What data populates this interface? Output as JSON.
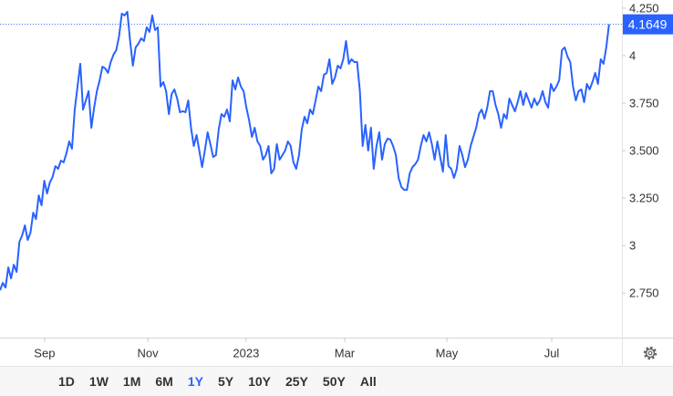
{
  "chart_data": {
    "type": "line",
    "values": [
      2.764,
      2.803,
      2.779,
      2.885,
      2.827,
      2.899,
      2.861,
      3.019,
      3.053,
      3.106,
      3.029,
      3.067,
      3.173,
      3.139,
      3.264,
      3.212,
      3.341,
      3.274,
      3.332,
      3.361,
      3.418,
      3.404,
      3.447,
      3.438,
      3.486,
      3.548,
      3.51,
      3.716,
      3.837,
      3.957,
      3.716,
      3.764,
      3.813,
      3.62,
      3.726,
      3.813,
      3.87,
      3.942,
      3.933,
      3.909,
      3.966,
      4.005,
      4.029,
      4.101,
      4.221,
      4.212,
      4.231,
      4.077,
      3.947,
      4.043,
      4.063,
      4.091,
      4.077,
      4.149,
      4.125,
      4.212,
      4.135,
      4.149,
      3.837,
      3.861,
      3.813,
      3.692,
      3.798,
      3.822,
      3.774,
      3.702,
      3.707,
      3.702,
      3.764,
      3.62,
      3.524,
      3.582,
      3.5,
      3.413,
      3.5,
      3.596,
      3.534,
      3.466,
      3.476,
      3.611,
      3.692,
      3.678,
      3.716,
      3.654,
      3.87,
      3.822,
      3.885,
      3.837,
      3.813,
      3.726,
      3.659,
      3.572,
      3.62,
      3.548,
      3.524,
      3.452,
      3.476,
      3.524,
      3.38,
      3.404,
      3.534,
      3.452,
      3.476,
      3.5,
      3.548,
      3.524,
      3.438,
      3.404,
      3.476,
      3.611,
      3.678,
      3.644,
      3.716,
      3.692,
      3.764,
      3.837,
      3.813,
      3.899,
      3.909,
      3.981,
      3.851,
      3.885,
      3.947,
      3.933,
      3.981,
      4.077,
      3.957,
      3.981,
      3.966,
      3.966,
      3.813,
      3.524,
      3.635,
      3.5,
      3.62,
      3.404,
      3.524,
      3.596,
      3.452,
      3.534,
      3.563,
      3.558,
      3.524,
      3.476,
      3.356,
      3.308,
      3.293,
      3.293,
      3.38,
      3.413,
      3.428,
      3.452,
      3.524,
      3.582,
      3.548,
      3.596,
      3.534,
      3.452,
      3.548,
      3.466,
      3.389,
      3.582,
      3.418,
      3.404,
      3.356,
      3.404,
      3.524,
      3.476,
      3.413,
      3.452,
      3.524,
      3.572,
      3.62,
      3.692,
      3.716,
      3.668,
      3.726,
      3.813,
      3.813,
      3.74,
      3.692,
      3.62,
      3.692,
      3.668,
      3.774,
      3.74,
      3.707,
      3.755,
      3.813,
      3.74,
      3.803,
      3.764,
      3.726,
      3.774,
      3.74,
      3.764,
      3.813,
      3.755,
      3.726,
      3.851,
      3.813,
      3.837,
      3.87,
      4.029,
      4.043,
      3.995,
      3.966,
      3.837,
      3.764,
      3.813,
      3.822,
      3.755,
      3.851,
      3.822,
      3.861,
      3.909,
      3.851,
      3.981,
      3.957,
      4.043,
      4.1649
    ],
    "color": "#2962ff",
    "xlim": [
      0,
      224
    ],
    "xticks": [
      {
        "value": 16.1,
        "label": "Sep"
      },
      {
        "value": 53.4,
        "label": "Nov"
      },
      {
        "value": 88.9,
        "label": "2023"
      },
      {
        "value": 124.5,
        "label": "Mar"
      },
      {
        "value": 161.4,
        "label": "May"
      },
      {
        "value": 199.3,
        "label": "Jul"
      }
    ],
    "ylim": [
      2.515,
      4.293
    ],
    "yticks": [
      {
        "value": 4.25,
        "label": "4.250"
      },
      4,
      {
        "value": 3.75,
        "label": "3.750"
      },
      {
        "value": 3.5,
        "label": "3.500"
      },
      {
        "value": 3.25,
        "label": "3.250"
      },
      3,
      {
        "value": 2.75,
        "label": "2.750"
      }
    ],
    "last_value_marker": true
  },
  "toolbar": {
    "buttons": [
      "1D",
      "1W",
      "1M",
      "6M",
      "1Y",
      "5Y",
      "10Y",
      "25Y",
      "50Y",
      "All"
    ],
    "active_index": 4
  }
}
